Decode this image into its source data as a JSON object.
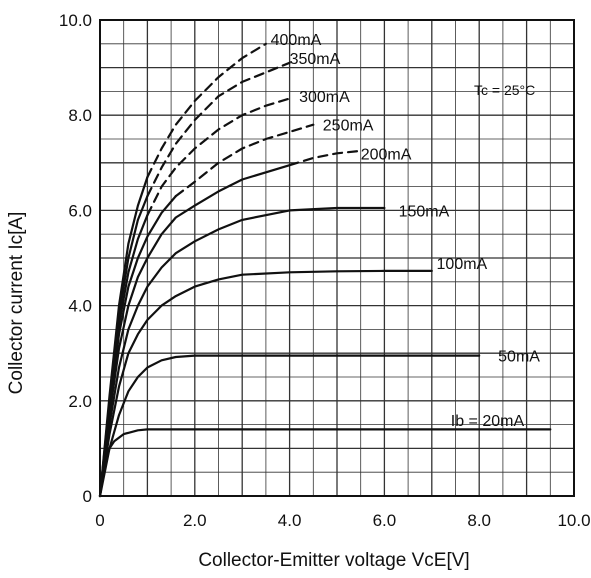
{
  "chart_data": {
    "type": "line",
    "title": "",
    "xlabel": "Collector-Emitter voltage VcE[V]",
    "ylabel": "Collector current   Ic[A]",
    "annotation": "Tc = 25°C",
    "xlim": [
      0,
      10
    ],
    "ylim": [
      0,
      10
    ],
    "grid": true,
    "x_ticks": [
      0,
      2,
      4,
      6,
      8,
      10
    ],
    "y_ticks": [
      0,
      2,
      4,
      6,
      8,
      10
    ],
    "x_tick_labels": [
      "0",
      "2.0",
      "4.0",
      "6.0",
      "8.0",
      "10.0"
    ],
    "y_tick_labels": [
      "0",
      "2.0",
      "4.0",
      "6.0",
      "8.0",
      "10.0"
    ],
    "colors": {
      "line": "#111111",
      "grid": "#333333",
      "background": "#ffffff"
    },
    "series": [
      {
        "name": "Ib = 20mA",
        "dashed": false,
        "x": [
          0,
          0.1,
          0.2,
          0.3,
          0.5,
          0.8,
          1.0,
          2.0,
          4.0,
          6.0,
          8.0,
          9.5
        ],
        "y": [
          0,
          0.7,
          1.0,
          1.15,
          1.3,
          1.38,
          1.4,
          1.4,
          1.4,
          1.4,
          1.4,
          1.4
        ]
      },
      {
        "name": "50mA",
        "dashed": false,
        "x": [
          0,
          0.2,
          0.4,
          0.6,
          0.8,
          1.0,
          1.3,
          1.6,
          2.0,
          3.0,
          4.0,
          6.0,
          8.0
        ],
        "y": [
          0,
          1.0,
          1.7,
          2.2,
          2.5,
          2.7,
          2.85,
          2.92,
          2.95,
          2.95,
          2.95,
          2.95,
          2.95
        ]
      },
      {
        "name": "100mA",
        "dashed": false,
        "x": [
          0,
          0.2,
          0.4,
          0.6,
          0.8,
          1.0,
          1.3,
          1.6,
          2.0,
          2.5,
          3.0,
          4.0,
          5.0,
          6.0,
          7.0
        ],
        "y": [
          0,
          1.3,
          2.3,
          3.0,
          3.4,
          3.7,
          4.0,
          4.2,
          4.4,
          4.55,
          4.65,
          4.7,
          4.72,
          4.73,
          4.73
        ]
      },
      {
        "name": "150mA",
        "dashed": false,
        "x": [
          0,
          0.2,
          0.4,
          0.6,
          0.8,
          1.0,
          1.3,
          1.6,
          2.0,
          2.5,
          3.0,
          4.0,
          5.0,
          6.0
        ],
        "y": [
          0,
          1.5,
          2.7,
          3.5,
          4.0,
          4.4,
          4.8,
          5.1,
          5.35,
          5.6,
          5.8,
          6.0,
          6.05,
          6.05
        ]
      },
      {
        "name": "200mA",
        "dashed": false,
        "x": [
          0,
          0.2,
          0.4,
          0.6,
          0.8,
          1.0,
          1.3,
          1.6,
          2.0,
          2.5,
          3.0,
          4.0
        ],
        "y": [
          0,
          1.7,
          3.1,
          4.0,
          4.6,
          5.0,
          5.5,
          5.85,
          6.1,
          6.4,
          6.65,
          6.95
        ]
      },
      {
        "name": "200mA",
        "dashed": true,
        "x": [
          4.0,
          4.5,
          5.0,
          5.5
        ],
        "y": [
          6.95,
          7.1,
          7.2,
          7.25
        ]
      },
      {
        "name": "250mA",
        "dashed": false,
        "x": [
          0,
          0.2,
          0.4,
          0.6,
          0.8,
          1.0,
          1.3,
          1.6
        ],
        "y": [
          0,
          1.8,
          3.4,
          4.4,
          5.0,
          5.45,
          5.95,
          6.3
        ]
      },
      {
        "name": "250mA",
        "dashed": true,
        "x": [
          1.6,
          2.0,
          2.5,
          3.0,
          3.5,
          4.0,
          4.5
        ],
        "y": [
          6.3,
          6.6,
          7.0,
          7.3,
          7.5,
          7.65,
          7.8
        ]
      },
      {
        "name": "300mA",
        "dashed": false,
        "x": [
          0,
          0.2,
          0.4,
          0.6,
          0.8,
          1.0
        ],
        "y": [
          0,
          1.9,
          3.6,
          4.7,
          5.4,
          5.9
        ]
      },
      {
        "name": "300mA",
        "dashed": true,
        "x": [
          1.0,
          1.3,
          1.6,
          2.0,
          2.5,
          3.0,
          3.5,
          4.0
        ],
        "y": [
          5.9,
          6.5,
          6.9,
          7.3,
          7.7,
          8.0,
          8.2,
          8.35
        ]
      },
      {
        "name": "350mA",
        "dashed": false,
        "x": [
          0,
          0.2,
          0.4,
          0.6,
          0.8,
          1.0
        ],
        "y": [
          0,
          2.0,
          3.8,
          5.0,
          5.8,
          6.3
        ]
      },
      {
        "name": "350mA",
        "dashed": true,
        "x": [
          1.0,
          1.3,
          1.6,
          2.0,
          2.5,
          3.0,
          3.5,
          4.0
        ],
        "y": [
          6.3,
          6.9,
          7.4,
          7.9,
          8.4,
          8.7,
          8.9,
          9.1
        ]
      },
      {
        "name": "400mA",
        "dashed": false,
        "x": [
          0,
          0.2,
          0.4,
          0.6,
          0.8,
          1.0
        ],
        "y": [
          0,
          2.1,
          4.0,
          5.3,
          6.1,
          6.7
        ]
      },
      {
        "name": "400mA",
        "dashed": true,
        "x": [
          1.0,
          1.3,
          1.6,
          2.0,
          2.5,
          3.0,
          3.5
        ],
        "y": [
          6.7,
          7.3,
          7.8,
          8.3,
          8.8,
          9.2,
          9.5
        ]
      }
    ],
    "curve_labels": [
      {
        "text": "Ib = 20mA",
        "x": 7.4,
        "y": 1.6
      },
      {
        "text": "50mA",
        "x": 8.4,
        "y": 2.95
      },
      {
        "text": "100mA",
        "x": 7.1,
        "y": 4.9
      },
      {
        "text": "150mA",
        "x": 6.3,
        "y": 6.0
      },
      {
        "text": "200mA",
        "x": 5.5,
        "y": 7.2
      },
      {
        "text": "250mA",
        "x": 4.7,
        "y": 7.8
      },
      {
        "text": "300mA",
        "x": 4.2,
        "y": 8.4
      },
      {
        "text": "350mA",
        "x": 4.0,
        "y": 9.2
      },
      {
        "text": "400mA",
        "x": 3.6,
        "y": 9.6
      }
    ]
  }
}
